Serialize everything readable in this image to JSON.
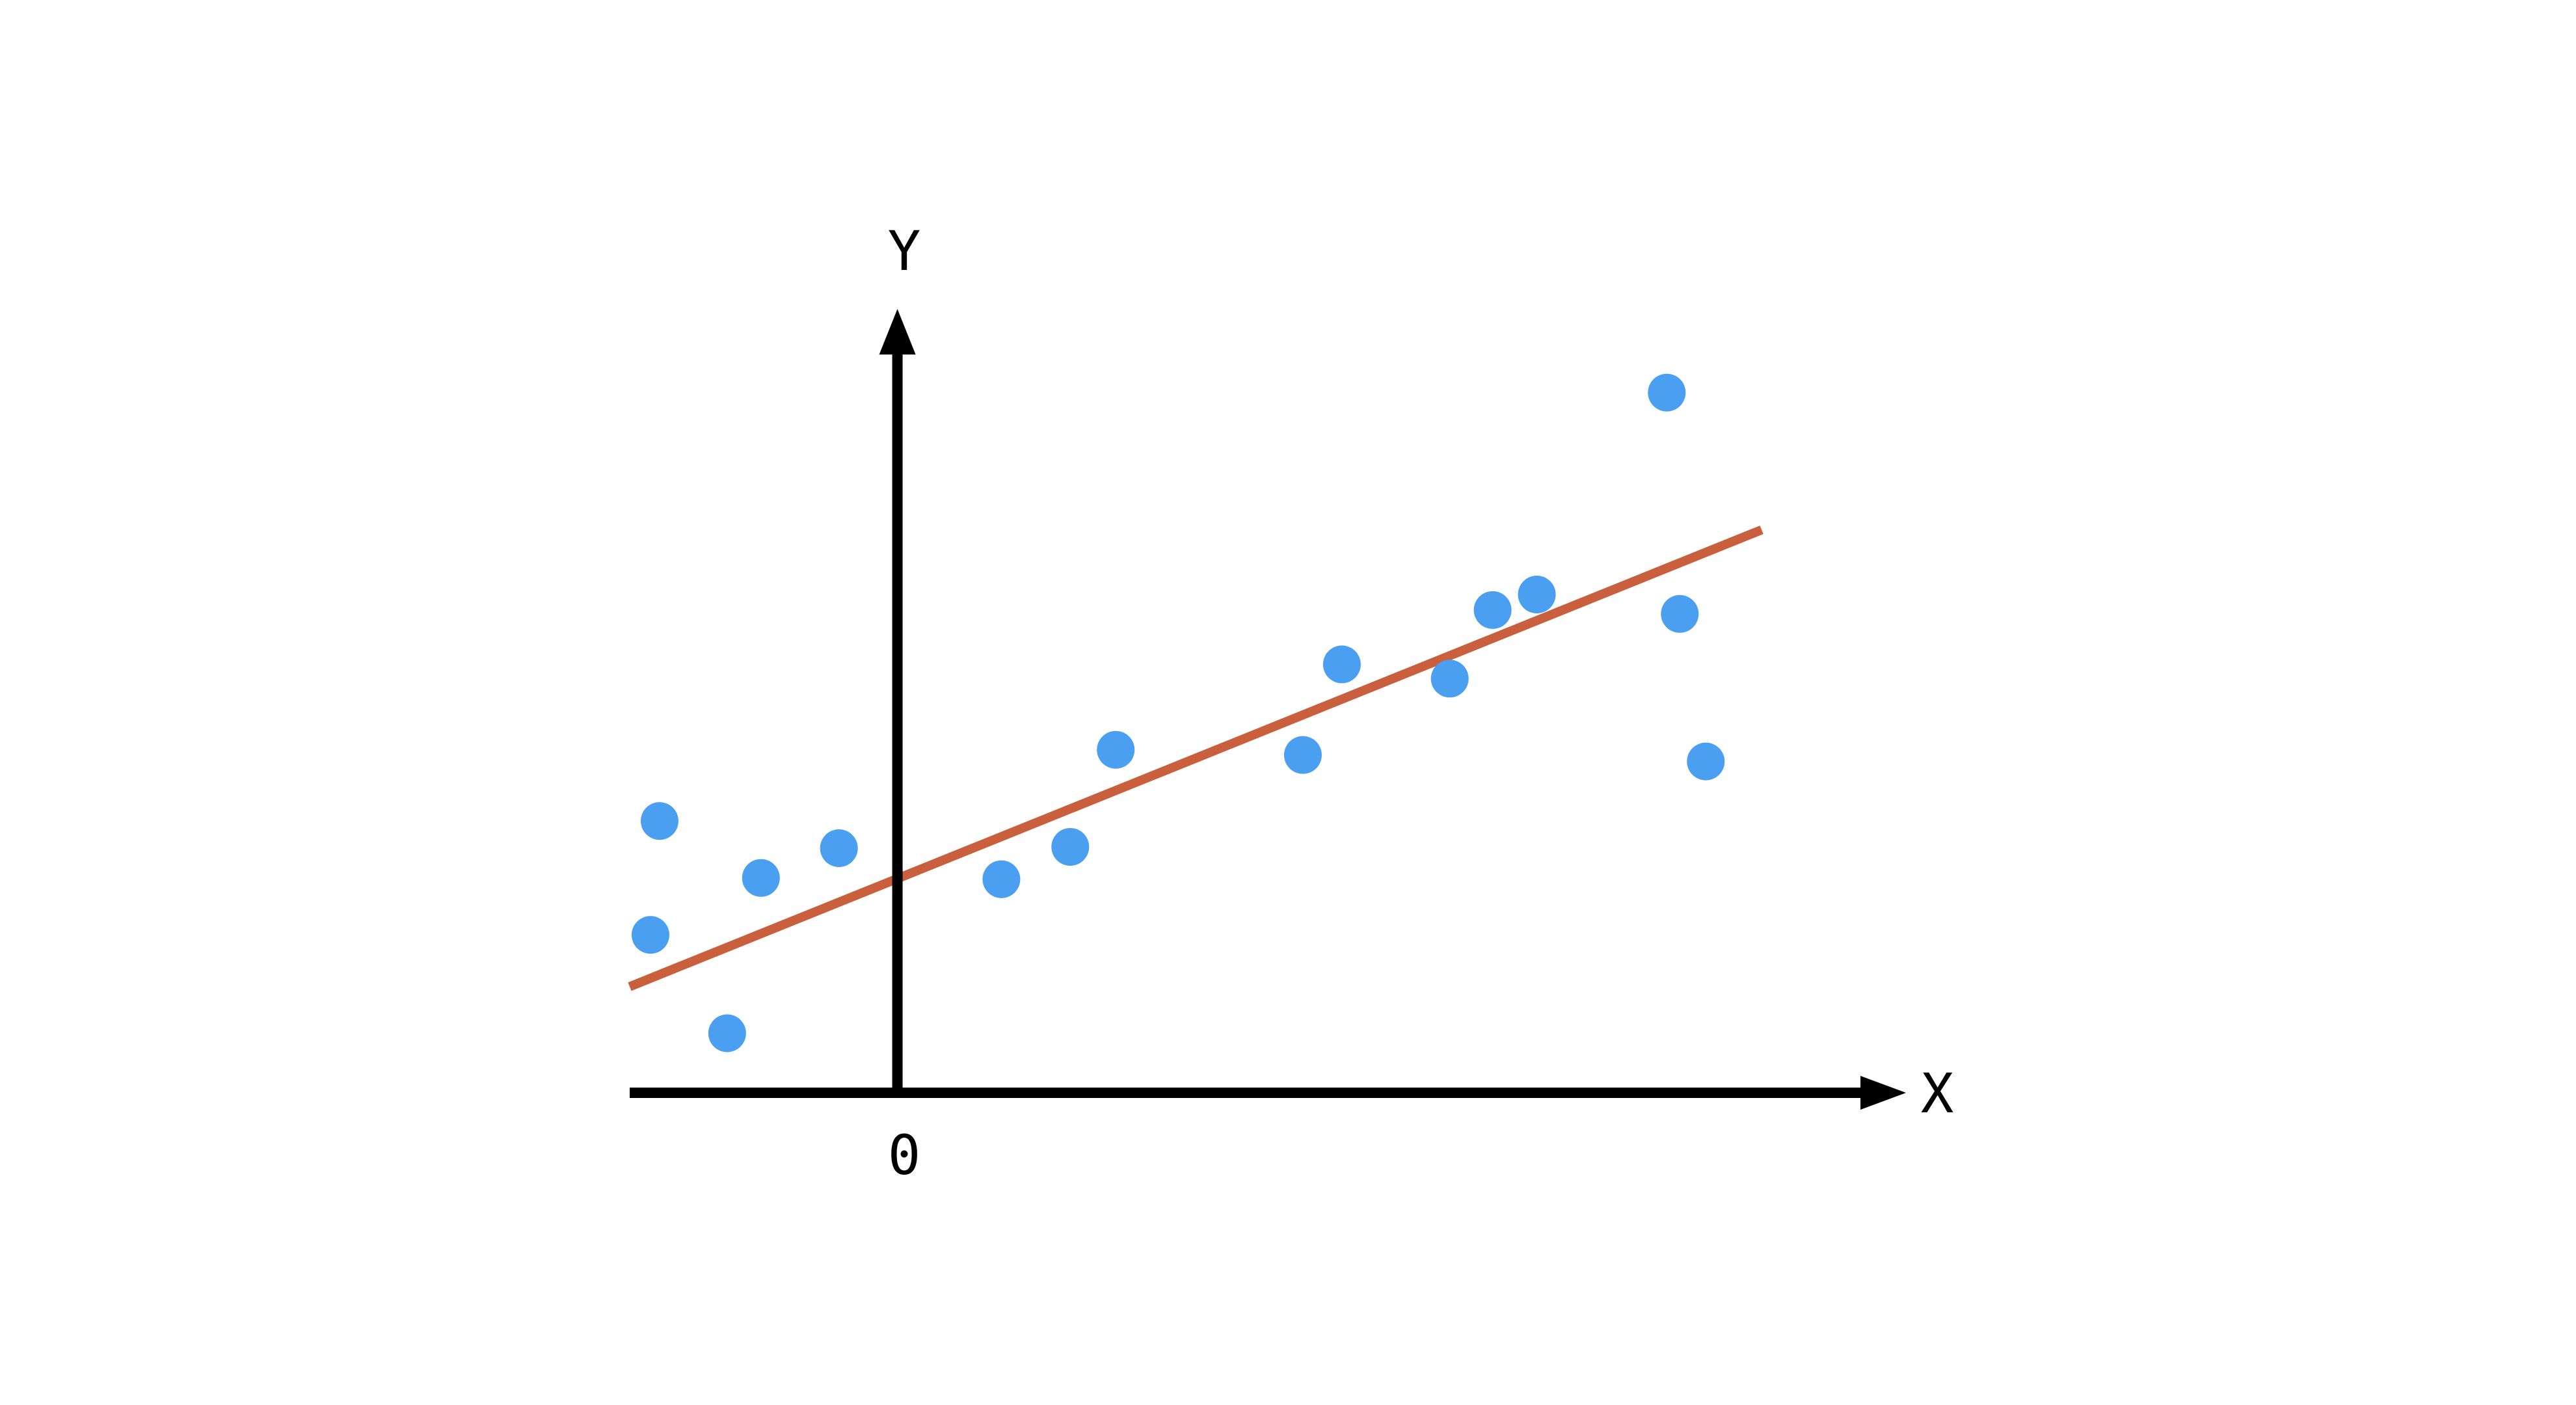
{
  "chart_data": {
    "type": "scatter",
    "title": "",
    "xlabel": "X",
    "ylabel": "Y",
    "origin_label": "0",
    "xlim": [
      -2.06,
      7.31
    ],
    "ylim": [
      0,
      5.83
    ],
    "grid": false,
    "legend": "none",
    "points": {
      "x": [
        -1.9,
        -1.83,
        -1.31,
        -1.05,
        -0.45,
        0.8,
        1.33,
        1.68,
        3.12,
        3.42,
        4.25,
        4.58,
        4.92,
        5.92,
        6.02,
        6.22
      ],
      "y": [
        1.22,
        2.1,
        0.46,
        1.66,
        1.89,
        1.65,
        1.9,
        2.65,
        2.61,
        3.31,
        3.2,
        3.73,
        3.85,
        5.41,
        3.7,
        2.56
      ]
    },
    "fit_line": {
      "x": [
        -2.06,
        6.65
      ],
      "y": [
        0.82,
        4.35
      ]
    },
    "colors": {
      "points": "#4a9ff0",
      "fit_line": "#c95f3c",
      "axes": "#000000",
      "background": "#ffffff"
    }
  }
}
